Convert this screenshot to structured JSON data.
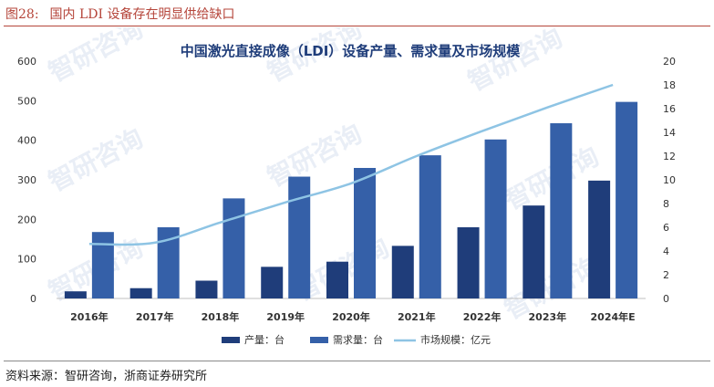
{
  "figure": {
    "label": "图28:",
    "caption": "国内 LDI 设备存在明显供给缺口"
  },
  "source_note": "资料来源：智研咨询，浙商证券研究所",
  "watermark_text": "智研咨询",
  "colors": {
    "production": "#1f3d7a",
    "demand": "#3560a8",
    "market": "#8ec4e4",
    "title": "#1f3d7a",
    "caption": "#b5453a"
  },
  "chart_data": {
    "type": "bar",
    "title": "中国激光直接成像（LDI）设备产量、需求量及市场规模",
    "categories": [
      "2016年",
      "2017年",
      "2018年",
      "2019年",
      "2020年",
      "2021年",
      "2022年",
      "2023年",
      "2024年E"
    ],
    "series": [
      {
        "name": "产量：台",
        "type": "bar",
        "axis": "left",
        "values": [
          18,
          26,
          45,
          80,
          93,
          133,
          180,
          235,
          298
        ]
      },
      {
        "name": "需求量：台",
        "type": "bar",
        "axis": "left",
        "values": [
          168,
          180,
          253,
          308,
          330,
          362,
          402,
          443,
          497
        ]
      },
      {
        "name": "市场规模：亿元",
        "type": "line",
        "axis": "right",
        "values": [
          4.6,
          4.7,
          6.4,
          8.1,
          9.7,
          12.0,
          14.1,
          16.1,
          18.0
        ]
      }
    ],
    "y_left": {
      "ticks": [
        "0",
        "100",
        "200",
        "300",
        "400",
        "500",
        "600"
      ],
      "lim": [
        0,
        600
      ]
    },
    "y_right": {
      "ticks": [
        "0",
        "2",
        "4",
        "6",
        "8",
        "10",
        "12",
        "14",
        "16",
        "18",
        "20"
      ],
      "lim": [
        0,
        20
      ]
    },
    "legend_position": "bottom",
    "grid": false
  }
}
